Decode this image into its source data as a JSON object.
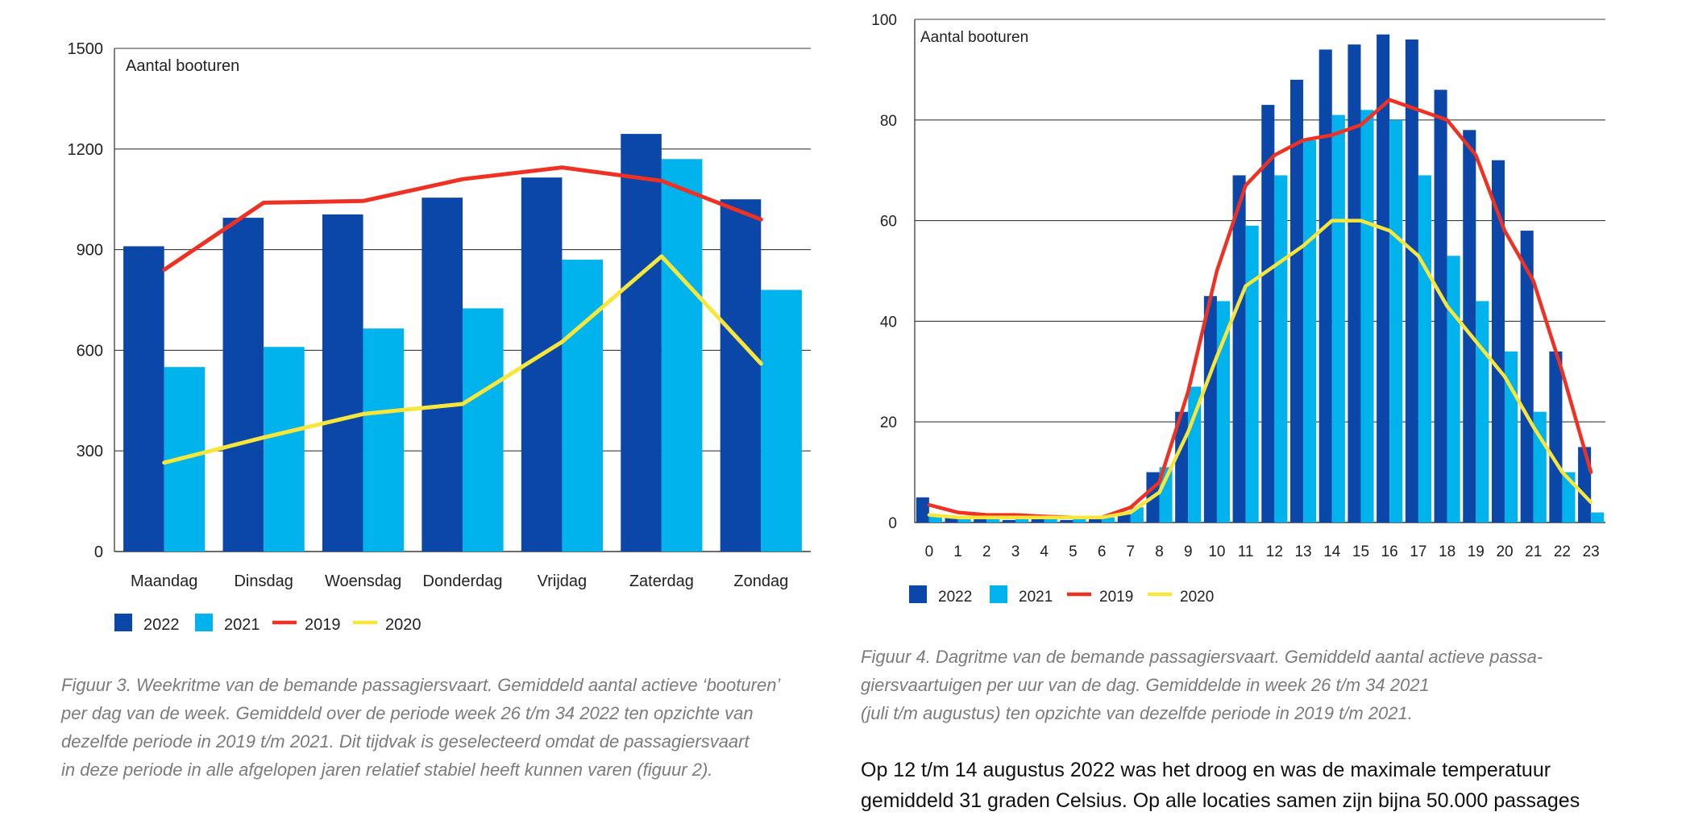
{
  "colors": {
    "c2022": "#0a47a9",
    "c2021": "#00b3ec",
    "c2019": "#ef3124",
    "c2020": "#f9e63b",
    "grid": "#3b3b3b"
  },
  "chart_data": [
    {
      "type": "bar",
      "inner_label": "Aantal booturen",
      "categories": [
        "Maandag",
        "Dinsdag",
        "Woensdag",
        "Donderdag",
        "Vrijdag",
        "Zaterdag",
        "Zondag"
      ],
      "ylim": [
        0,
        1500
      ],
      "yticks": [
        "0",
        "300",
        "600",
        "900",
        "1200",
        "1500"
      ],
      "grid": true,
      "legend_position": "bottom-left",
      "series": [
        {
          "name": "2022",
          "kind": "bar",
          "values": [
            910,
            995,
            1005,
            1055,
            1115,
            1245,
            1050
          ]
        },
        {
          "name": "2021",
          "kind": "bar",
          "values": [
            550,
            610,
            665,
            725,
            870,
            1170,
            780
          ]
        },
        {
          "name": "2019",
          "kind": "line",
          "values": [
            840,
            1040,
            1045,
            1110,
            1145,
            1105,
            990
          ]
        },
        {
          "name": "2020",
          "kind": "line",
          "values": [
            265,
            340,
            410,
            440,
            625,
            880,
            560
          ]
        }
      ]
    },
    {
      "type": "bar",
      "inner_label": "Aantal booturen",
      "categories": [
        "0",
        "1",
        "2",
        "3",
        "4",
        "5",
        "6",
        "7",
        "8",
        "9",
        "10",
        "11",
        "12",
        "13",
        "14",
        "15",
        "16",
        "17",
        "18",
        "19",
        "20",
        "21",
        "22",
        "23"
      ],
      "ylim": [
        0,
        100
      ],
      "yticks": [
        "0",
        "20",
        "40",
        "60",
        "80",
        "100"
      ],
      "grid": true,
      "legend_position": "bottom-left",
      "series": [
        {
          "name": "2022",
          "kind": "bar",
          "values": [
            5,
            1,
            1,
            0.5,
            1,
            0.5,
            1,
            2,
            10,
            22,
            45,
            69,
            83,
            88,
            94,
            95,
            97,
            96,
            86,
            78,
            72,
            58,
            34,
            15
          ]
        },
        {
          "name": "2021",
          "kind": "bar",
          "values": [
            1.5,
            1,
            1,
            1,
            1,
            1,
            1,
            3,
            11,
            27,
            44,
            59,
            69,
            76,
            81,
            82,
            80,
            69,
            53,
            44,
            34,
            22,
            10,
            2
          ]
        },
        {
          "name": "2019",
          "kind": "line",
          "values": [
            3.5,
            2,
            1.5,
            1.5,
            1.2,
            1,
            1,
            3,
            8,
            26,
            50,
            67,
            73,
            76,
            77,
            79,
            84,
            82,
            80,
            73,
            58,
            48,
            30,
            10
          ]
        },
        {
          "name": "2020",
          "kind": "line",
          "values": [
            1.5,
            1,
            1,
            1,
            1,
            1,
            1,
            2,
            6,
            18,
            33,
            47,
            51,
            55,
            60,
            60,
            58,
            53,
            43,
            36,
            29,
            19,
            10,
            4
          ]
        }
      ]
    }
  ],
  "captions": {
    "left": [
      "Figuur 3. Weekritme van de bemande passagiersvaart. Gemiddeld aantal actieve ‘booturen’",
      "per dag van de week. Gemiddeld over de periode week 26 t/m 34 2022 ten opzichte van",
      "dezelfde periode in 2019 t/m 2021. Dit tijdvak is geselecteerd omdat de passagiersvaart",
      "in deze periode in alle afgelopen jaren relatief stabiel heeft kunnen varen (figuur 2)."
    ],
    "right": [
      "Figuur 4. Dagritme van de bemande passagiersvaart. Gemiddeld aantal actieve passa-",
      "giersvaartuigen per uur van de dag. Gemiddelde in week 26 t/m 34 2021",
      "(juli t/m augustus) ten opzichte van dezelfde periode in 2019 t/m 2021."
    ]
  },
  "body_text": [
    "Op 12 t/m 14 augustus 2022 was het droog en was de maximale temperatuur",
    "gemiddeld 31 graden Celsius. Op alle locaties samen zijn bijna 50.000 passages"
  ]
}
